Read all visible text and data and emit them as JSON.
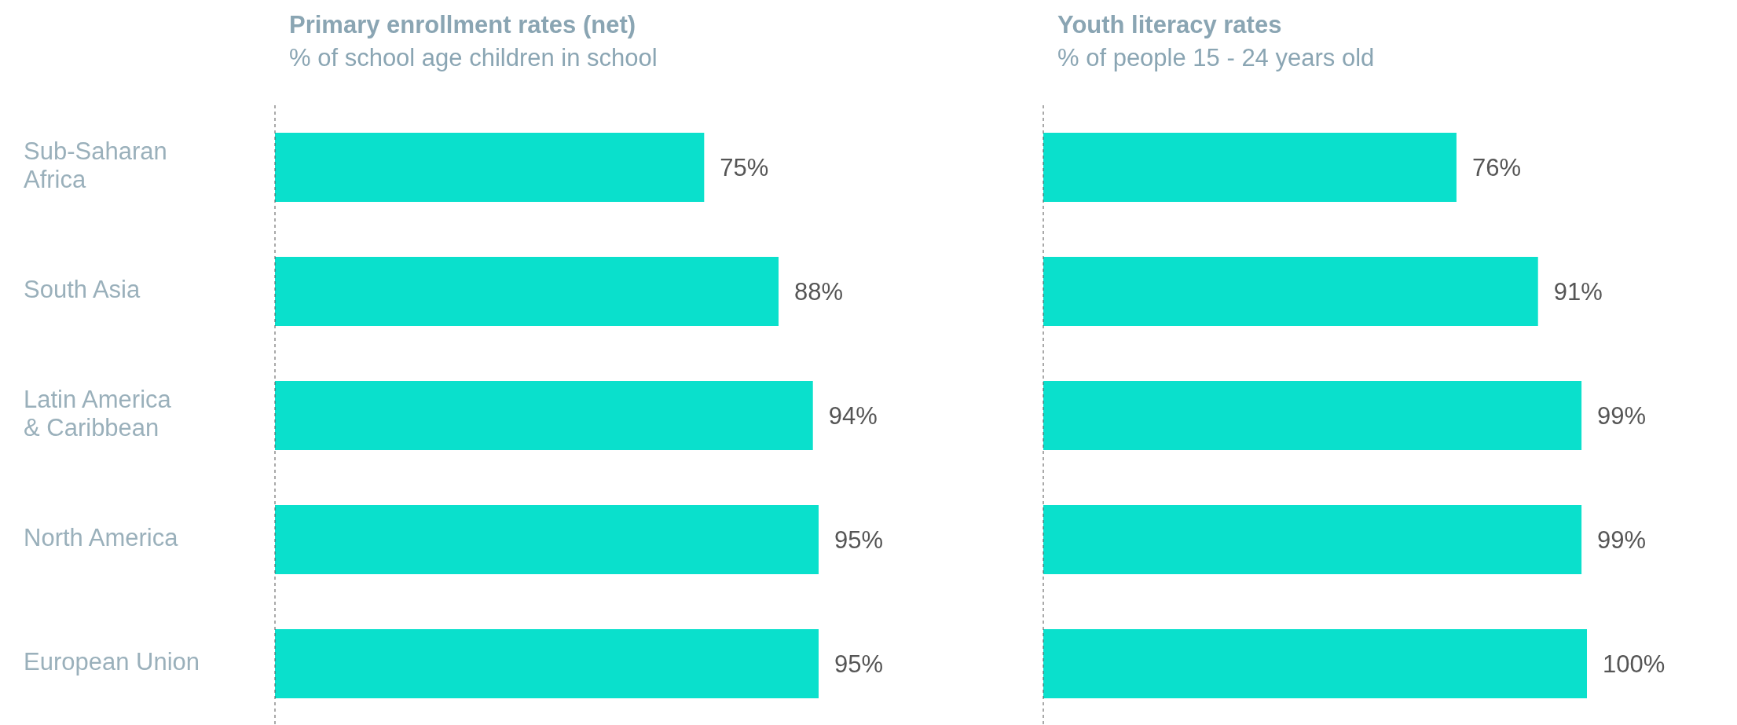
{
  "chart_data": [
    {
      "type": "bar",
      "orientation": "horizontal",
      "title": "Primary enrollment rates (net)",
      "subtitle": "% of school age children in school",
      "categories": [
        "Sub-Saharan Africa",
        "South Asia",
        "Latin America & Caribbean",
        "North America",
        "European Union"
      ],
      "values": [
        75,
        88,
        94,
        95,
        95
      ],
      "value_labels": [
        "75%",
        "88%",
        "94%",
        "95%",
        "95%"
      ],
      "color": "#0ae0cc",
      "tick_labels": "y"
    },
    {
      "type": "bar",
      "orientation": "horizontal",
      "title": "Youth literacy rates",
      "subtitle": "% of people 15 - 24 years old",
      "categories": [
        null,
        null,
        null,
        null,
        null
      ],
      "values": [
        76,
        91,
        99,
        99,
        100
      ],
      "value_labels": [
        "76%",
        "91%",
        "99%",
        "99%",
        "100%"
      ],
      "color": "#0ae0cc",
      "tick_labels": false
    }
  ]
}
